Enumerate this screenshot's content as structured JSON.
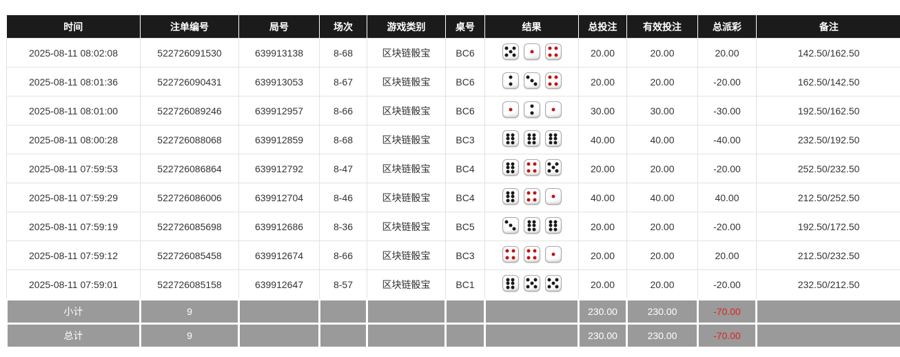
{
  "table": {
    "columns": [
      {
        "label": "时间"
      },
      {
        "label": "注单编号"
      },
      {
        "label": "局号"
      },
      {
        "label": "场次"
      },
      {
        "label": "游戏类别"
      },
      {
        "label": "桌号"
      },
      {
        "label": "结果"
      },
      {
        "label": "总投注"
      },
      {
        "label": "有效投注"
      },
      {
        "label": "总派彩"
      },
      {
        "label": "备注"
      }
    ],
    "rows": [
      {
        "time": "2025-08-11 08:02:08",
        "bet_id": "522726091530",
        "round_id": "639913138",
        "session": "8-68",
        "game_type": "区块链骰宝",
        "table_no": "BC6",
        "result": [
          5,
          1,
          4
        ],
        "total_bet": "20.00",
        "valid_bet": "20.00",
        "total_payout": "20.00",
        "remark": "142.50/162.50"
      },
      {
        "time": "2025-08-11 08:01:36",
        "bet_id": "522726090431",
        "round_id": "639913053",
        "session": "8-67",
        "game_type": "区块链骰宝",
        "table_no": "BC6",
        "result": [
          2,
          3,
          4
        ],
        "total_bet": "20.00",
        "valid_bet": "20.00",
        "total_payout": "-20.00",
        "remark": "162.50/142.50"
      },
      {
        "time": "2025-08-11 08:01:00",
        "bet_id": "522726089246",
        "round_id": "639912957",
        "session": "8-66",
        "game_type": "区块链骰宝",
        "table_no": "BC6",
        "result": [
          1,
          2,
          1
        ],
        "total_bet": "30.00",
        "valid_bet": "30.00",
        "total_payout": "-30.00",
        "remark": "192.50/162.50"
      },
      {
        "time": "2025-08-11 08:00:28",
        "bet_id": "522726088068",
        "round_id": "639912859",
        "session": "8-68",
        "game_type": "区块链骰宝",
        "table_no": "BC3",
        "result": [
          6,
          6,
          6
        ],
        "total_bet": "40.00",
        "valid_bet": "40.00",
        "total_payout": "-40.00",
        "remark": "232.50/192.50"
      },
      {
        "time": "2025-08-11 07:59:53",
        "bet_id": "522726086864",
        "round_id": "639912792",
        "session": "8-47",
        "game_type": "区块链骰宝",
        "table_no": "BC4",
        "result": [
          6,
          4,
          5
        ],
        "total_bet": "20.00",
        "valid_bet": "20.00",
        "total_payout": "-20.00",
        "remark": "252.50/232.50"
      },
      {
        "time": "2025-08-11 07:59:29",
        "bet_id": "522726086006",
        "round_id": "639912704",
        "session": "8-46",
        "game_type": "区块链骰宝",
        "table_no": "BC4",
        "result": [
          6,
          4,
          1
        ],
        "total_bet": "40.00",
        "valid_bet": "40.00",
        "total_payout": "40.00",
        "remark": "212.50/252.50"
      },
      {
        "time": "2025-08-11 07:59:19",
        "bet_id": "522726085698",
        "round_id": "639912686",
        "session": "8-36",
        "game_type": "区块链骰宝",
        "table_no": "BC5",
        "result": [
          3,
          6,
          6
        ],
        "total_bet": "20.00",
        "valid_bet": "20.00",
        "total_payout": "-20.00",
        "remark": "192.50/172.50"
      },
      {
        "time": "2025-08-11 07:59:12",
        "bet_id": "522726085458",
        "round_id": "639912674",
        "session": "8-66",
        "game_type": "区块链骰宝",
        "table_no": "BC3",
        "result": [
          4,
          4,
          1
        ],
        "total_bet": "20.00",
        "valid_bet": "20.00",
        "total_payout": "20.00",
        "remark": "212.50/232.50"
      },
      {
        "time": "2025-08-11 07:59:01",
        "bet_id": "522726085158",
        "round_id": "639912647",
        "session": "8-57",
        "game_type": "区块链骰宝",
        "table_no": "BC1",
        "result": [
          6,
          5,
          5
        ],
        "total_bet": "20.00",
        "valid_bet": "20.00",
        "total_payout": "-20.00",
        "remark": "232.50/212.50"
      }
    ],
    "summary": [
      {
        "label": "小计",
        "count": "9",
        "total_bet": "230.00",
        "valid_bet": "230.00",
        "total_payout": "-70.00"
      },
      {
        "label": "总计",
        "count": "9",
        "total_bet": "230.00",
        "valid_bet": "230.00",
        "total_payout": "-70.00"
      }
    ]
  },
  "colors": {
    "header_bg": "#1b1b1b",
    "summary_bg": "#9a9a9a",
    "bet_blue": "#3b6ad6",
    "negative_red": "#e02222",
    "dice_red_pip": "#c41212",
    "dice_black_pip": "#1a1a1a"
  }
}
